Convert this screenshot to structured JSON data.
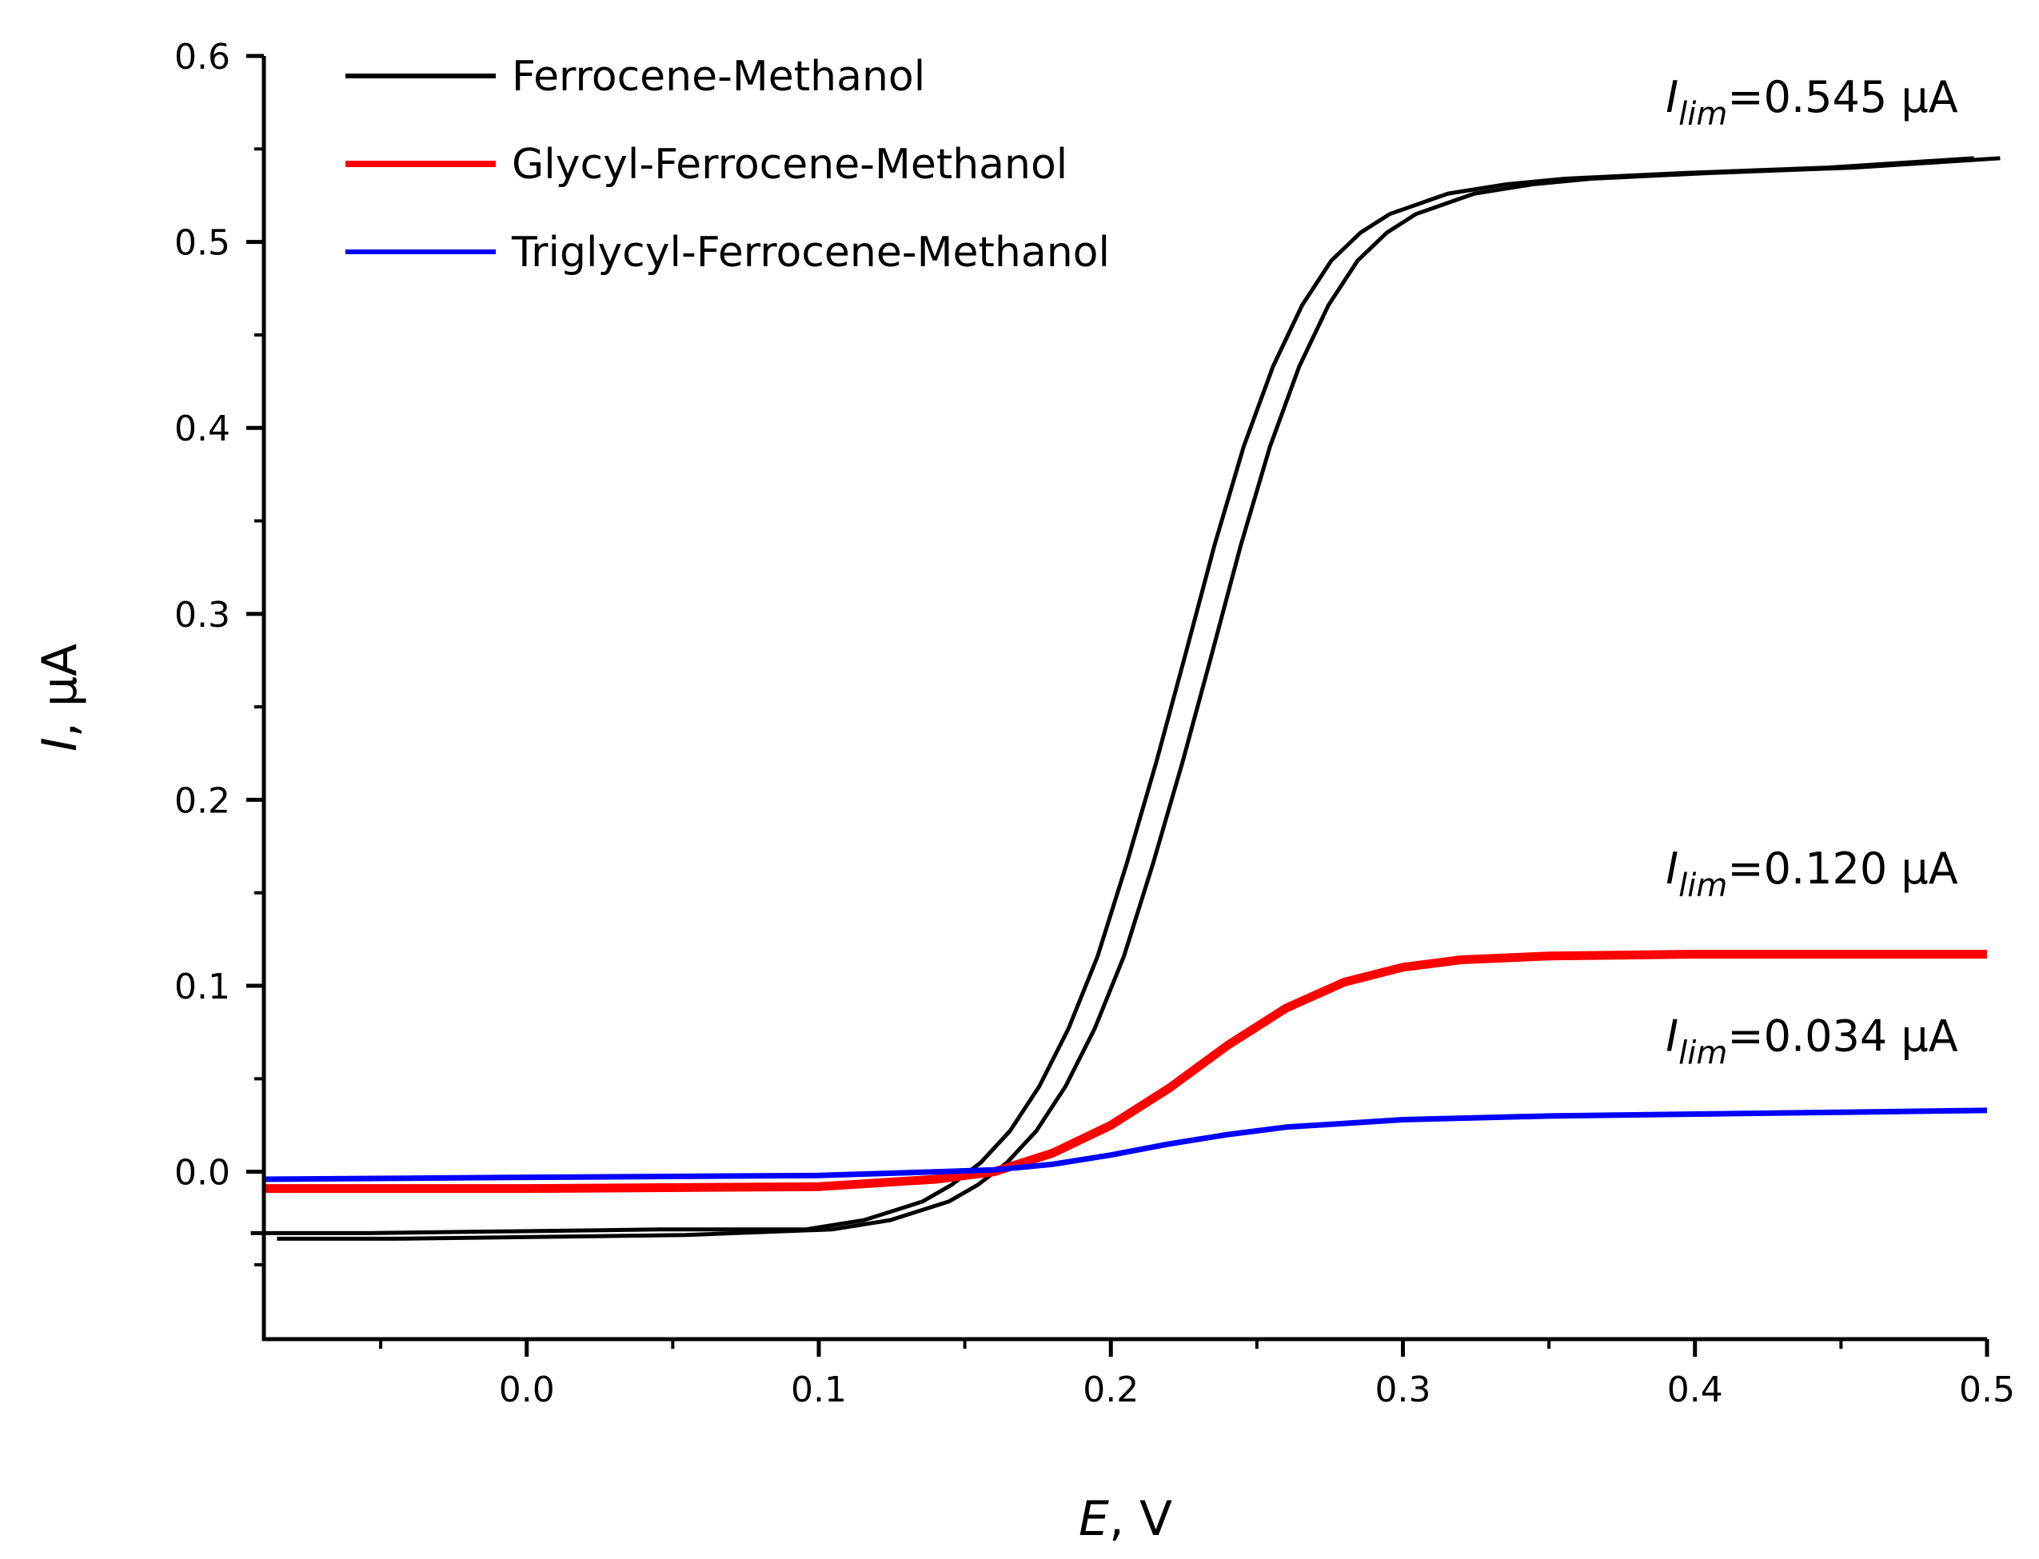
{
  "chart_data": {
    "type": "line",
    "title": "",
    "xlabel": {
      "var": "E",
      "unit": ", V"
    },
    "ylabel": {
      "var": "I",
      "unit": ", µA"
    },
    "xlim": [
      -0.09,
      0.5
    ],
    "ylim": [
      -0.09,
      0.6
    ],
    "x_ticks": [
      0.0,
      0.1,
      0.2,
      0.3,
      0.4,
      0.5
    ],
    "x_tick_labels": [
      "0.0",
      "0.1",
      "0.2",
      "0.3",
      "0.4",
      "0.5"
    ],
    "y_ticks": [
      0.0,
      0.1,
      0.2,
      0.3,
      0.4,
      0.5,
      0.6
    ],
    "y_tick_labels": [
      "0.0",
      "0.1",
      "0.2",
      "0.3",
      "0.4",
      "0.5",
      "0.6"
    ],
    "legend_position": "top-left",
    "series": [
      {
        "name": "Ferrocene-Methanol",
        "color": "#000000",
        "style": "double-line (forward and reverse scan)",
        "x": [
          -0.09,
          -0.05,
          0.0,
          0.05,
          0.1,
          0.12,
          0.14,
          0.15,
          0.16,
          0.17,
          0.18,
          0.19,
          0.2,
          0.21,
          0.22,
          0.23,
          0.24,
          0.25,
          0.26,
          0.27,
          0.28,
          0.29,
          0.3,
          0.32,
          0.34,
          0.36,
          0.4,
          0.45,
          0.5
        ],
        "y": [
          -0.036,
          -0.036,
          -0.035,
          -0.034,
          -0.031,
          -0.026,
          -0.016,
          -0.007,
          0.005,
          0.022,
          0.046,
          0.077,
          0.116,
          0.166,
          0.22,
          0.278,
          0.337,
          0.39,
          0.433,
          0.466,
          0.49,
          0.505,
          0.515,
          0.526,
          0.531,
          0.534,
          0.537,
          0.54,
          0.545
        ]
      },
      {
        "name": "Glycyl-Ferrocene-Methanol",
        "color": "#ff0000",
        "style": "thick line",
        "x": [
          -0.09,
          0.0,
          0.1,
          0.14,
          0.16,
          0.18,
          0.2,
          0.22,
          0.24,
          0.26,
          0.28,
          0.3,
          0.32,
          0.35,
          0.4,
          0.45,
          0.5
        ],
        "y": [
          -0.009,
          -0.009,
          -0.008,
          -0.004,
          0.0,
          0.01,
          0.025,
          0.045,
          0.068,
          0.088,
          0.102,
          0.11,
          0.114,
          0.116,
          0.117,
          0.117,
          0.117
        ]
      },
      {
        "name": "Triglycyl-Ferrocene-Methanol",
        "color": "#0000ff",
        "style": "line",
        "x": [
          -0.09,
          0.0,
          0.1,
          0.14,
          0.16,
          0.18,
          0.2,
          0.22,
          0.24,
          0.26,
          0.3,
          0.35,
          0.4,
          0.45,
          0.5
        ],
        "y": [
          -0.004,
          -0.003,
          -0.002,
          0.0,
          0.001,
          0.004,
          0.009,
          0.015,
          0.02,
          0.024,
          0.028,
          0.03,
          0.031,
          0.032,
          0.033
        ]
      }
    ],
    "annotations": [
      {
        "series": "Ferrocene-Methanol",
        "var": "I",
        "sub": "lim",
        "text": "=0.545 µA",
        "x": 0.39,
        "y": 0.57
      },
      {
        "series": "Glycyl-Ferrocene-Methanol",
        "var": "I",
        "sub": "lim",
        "text": "=0.120 µA",
        "x": 0.39,
        "y": 0.155
      },
      {
        "series": "Triglycyl-Ferrocene-Methanol",
        "var": "I",
        "sub": "lim",
        "text": "=0.034 µA",
        "x": 0.39,
        "y": 0.065
      }
    ]
  }
}
